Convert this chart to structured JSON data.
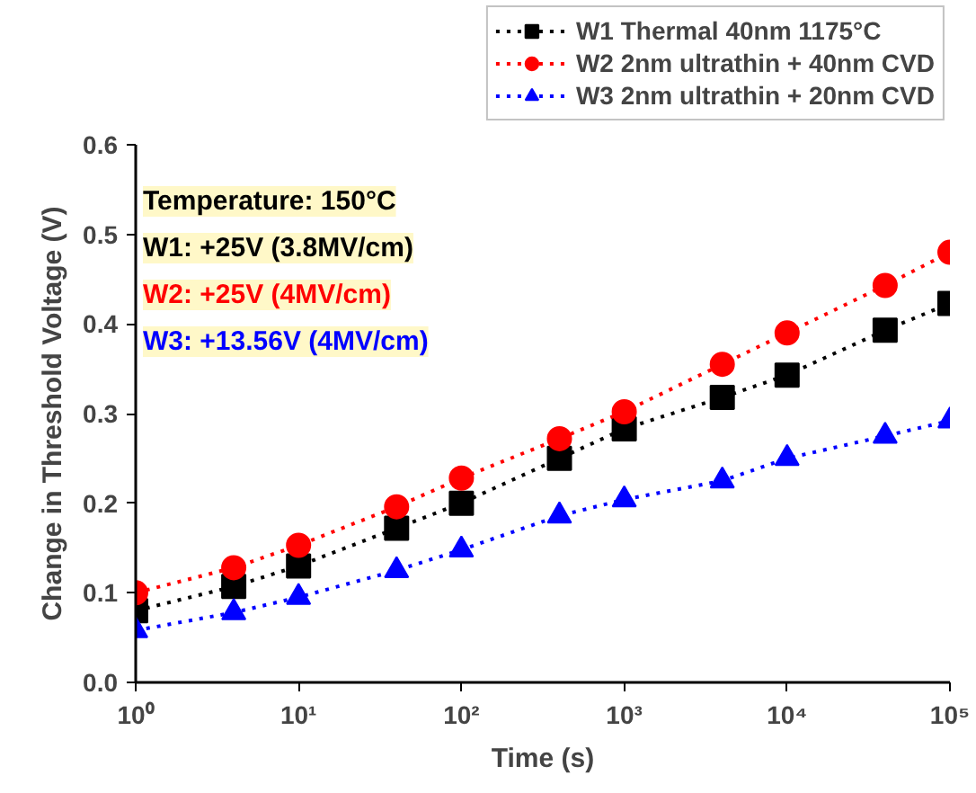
{
  "chart_data": {
    "type": "line",
    "xlabel": "Time (s)",
    "ylabel": "Change in Threshold Voltage (V)",
    "x": [
      1,
      4,
      10,
      40,
      100,
      400,
      1000,
      4000,
      10000,
      40000,
      100000
    ],
    "series": [
      {
        "name": "W1 Thermal 40nm 1175°C",
        "color": "#000000",
        "marker": "square",
        "values": [
          0.08,
          0.107,
          0.13,
          0.172,
          0.2,
          0.25,
          0.283,
          0.318,
          0.343,
          0.393,
          0.423
        ]
      },
      {
        "name": "W2 2nm ultrathin + 40nm CVD",
        "color": "#ff0000",
        "marker": "circle",
        "values": [
          0.1,
          0.128,
          0.153,
          0.196,
          0.228,
          0.272,
          0.302,
          0.355,
          0.39,
          0.443,
          0.48
        ]
      },
      {
        "name": "W3 2nm ultrathin + 20nm CVD",
        "color": "#0000ff",
        "marker": "triangle",
        "values": [
          0.058,
          0.078,
          0.095,
          0.125,
          0.148,
          0.186,
          0.204,
          0.225,
          0.25,
          0.275,
          0.292
        ]
      }
    ],
    "log": "x",
    "xlim": [
      1,
      100000
    ],
    "xticks": [
      {
        "value": 1,
        "label": "10⁰"
      },
      {
        "value": 10,
        "label": "10¹"
      },
      {
        "value": 100,
        "label": "10²"
      },
      {
        "value": 1000,
        "label": "10³"
      },
      {
        "value": 10000,
        "label": "10⁴"
      },
      {
        "value": 100000,
        "label": "10⁵"
      }
    ],
    "ylim": [
      0,
      0.6
    ],
    "yticks": [
      {
        "value": 0,
        "label": "0.0"
      },
      0.1,
      0.2,
      0.3,
      0.4,
      0.5,
      0.6
    ],
    "line_style": "dotted",
    "legend": "top right",
    "grid": false,
    "annotations": [
      "Temperature: 150°C",
      "W1: +25V (3.8MV/cm)",
      "W2: +25V (4MV/cm)",
      "W3: +13.56V (4MV/cm)"
    ]
  }
}
